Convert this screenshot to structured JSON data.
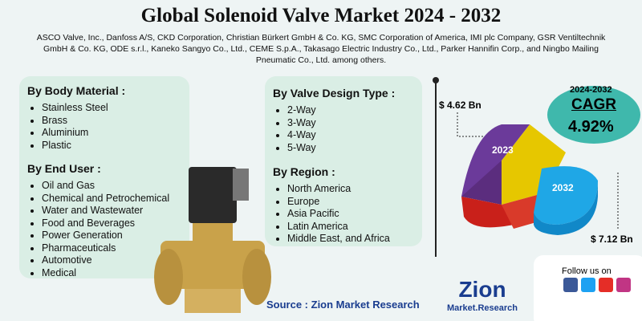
{
  "header": {
    "title": "Global Solenoid Valve Market 2024 - 2032",
    "subtitle": "ASCO Valve, Inc., Danfoss A/S, CKD Corporation, Christian Bürkert GmbH & Co. KG, SMC Corporation of America, IMI plc Company, GSR Ventiltechnik GmbH & Co. KG, ODE s.r.l., Kaneko Sangyo Co., Ltd., CEME S.p.A., Takasago Electric Industry Co., Ltd., Parker Hannifin Corp., and Ningbo Mailing Pneumatic Co., Ltd. among others."
  },
  "segments": [
    {
      "heading": "By Body Material :",
      "items": [
        "Stainless Steel",
        "Brass",
        "Aluminium",
        "Plastic"
      ]
    },
    {
      "heading": "By End User :",
      "items": [
        "Oil and Gas",
        "Chemical and Petrochemical",
        "Water and Wastewater",
        "Food and Beverages",
        "Power Generation",
        "Pharmaceuticals",
        "Automotive",
        "Medical"
      ]
    },
    {
      "heading": "By Valve Design Type :",
      "items": [
        "2-Way",
        "3-Way",
        "4-Way",
        "5-Way"
      ]
    },
    {
      "heading": "By Region :",
      "items": [
        "North America",
        "Europe",
        "Asia Pacific",
        "Latin America",
        "Middle East, and Africa"
      ]
    }
  ],
  "market": {
    "value_start": "$ 4.62 Bn",
    "value_end": "$ 7.12 Bn",
    "slice_start": "2023",
    "slice_end": "2032",
    "cagr_period": "2024-2032",
    "cagr_label": "CAGR",
    "cagr_value": "4.92%"
  },
  "footer": {
    "source": "Source : Zion Market Research",
    "follow": "Follow us on",
    "logo_main": "Zion",
    "logo_sub": "Market.Research"
  }
}
